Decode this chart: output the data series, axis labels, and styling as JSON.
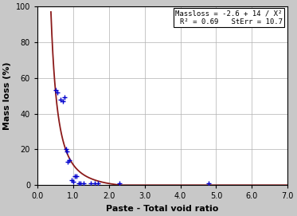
{
  "scatter_x": [
    0.5,
    0.55,
    0.65,
    0.7,
    0.75,
    0.8,
    0.82,
    0.85,
    0.88,
    0.95,
    1.0,
    1.05,
    1.1,
    1.15,
    1.2,
    1.3,
    1.5,
    1.6,
    1.7,
    2.3,
    4.8
  ],
  "scatter_y": [
    53,
    52,
    48,
    47,
    49,
    20,
    19,
    13,
    14,
    3,
    2,
    5,
    5,
    1,
    1,
    1,
    1,
    1,
    1,
    1,
    1
  ],
  "curve_a": -2.6,
  "curve_b": 14,
  "xlim": [
    0.0,
    7.0
  ],
  "ylim": [
    0,
    100
  ],
  "xticks": [
    0.0,
    1.0,
    2.0,
    3.0,
    4.0,
    5.0,
    6.0,
    7.0
  ],
  "xtick_labels": [
    "0.0",
    "1.0",
    "2.0",
    "3.0",
    "4.0",
    "5.0",
    "6.0",
    "7.0"
  ],
  "yticks": [
    0,
    20,
    40,
    60,
    80,
    100
  ],
  "xlabel": "Paste - Total void ratio",
  "ylabel": "Mass loss (%)",
  "annotation_line1": "Massloss = -2.6 + 14 / X²",
  "annotation_line2": "R² = 0.69   StErr = 10.7",
  "scatter_color": "#0000cc",
  "curve_color": "#8b1a1a",
  "box_facecolor": "white",
  "box_edgecolor": "black",
  "bg_color": "#c8c8c8",
  "plot_bg_color": "white",
  "marker": "+",
  "grid_color": "#b0b0b0"
}
